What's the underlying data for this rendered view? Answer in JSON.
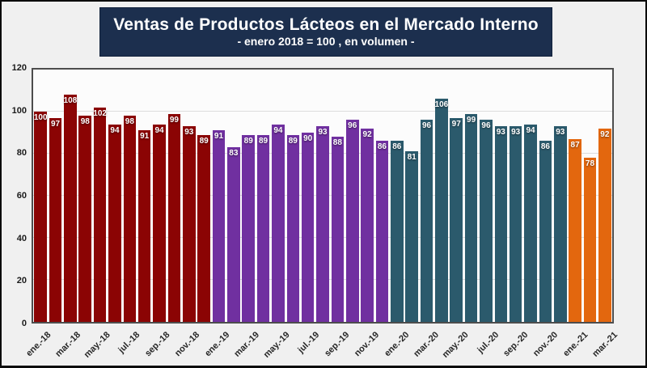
{
  "header": {
    "title": "Ventas de Productos Lácteos en el Mercado Interno",
    "subtitle": "- enero 2018 = 100 , en volumen -"
  },
  "chart_data": {
    "type": "bar",
    "title": "Ventas de Productos Lácteos en el Mercado Interno",
    "subtitle": "- enero 2018 = 100 , en volumen -",
    "ylim": [
      0,
      120
    ],
    "yticks": [
      0,
      20,
      40,
      60,
      80,
      100,
      120
    ],
    "grid": true,
    "legend": false,
    "value_labels": "inside-end",
    "xtick_labels": [
      "ene.-18",
      "mar.-18",
      "may.-18",
      "jul.-18",
      "sep.-18",
      "nov.-18",
      "ene.-19",
      "mar.-19",
      "may.-19",
      "jul.-19",
      "sep.-19",
      "nov.-19",
      "ene.-20",
      "mar.-20",
      "may.-20",
      "jul.-20",
      "sep.-20",
      "nov.-20",
      "ene.-21",
      "mar.-21"
    ],
    "xtick_every": 2,
    "series": [
      {
        "name": "2018",
        "color": "#8B0404",
        "values": [
          100,
          97,
          108,
          98,
          102,
          94,
          98,
          91,
          94,
          99,
          93,
          89
        ]
      },
      {
        "name": "2019",
        "color": "#7030A0",
        "values": [
          91,
          83,
          89,
          89,
          94,
          89,
          90,
          93,
          88,
          96,
          92,
          86
        ]
      },
      {
        "name": "2020",
        "color": "#2B5A6C",
        "values": [
          86,
          81,
          96,
          106,
          97,
          99,
          96,
          93,
          93,
          94,
          86,
          93
        ]
      },
      {
        "name": "2021",
        "color": "#E3670E",
        "values": [
          87,
          78,
          92
        ]
      }
    ]
  },
  "colors": {
    "title_background": "#1C2F4E",
    "title_text": "#ffffff",
    "page_background": "#F0F0F0",
    "plot_background": "#FCFCFC",
    "gridline": "#DCDCDC",
    "bar_2018": "#8B0404",
    "bar_2019": "#7030A0",
    "bar_2020": "#2B5A6C",
    "bar_2021": "#E3670E"
  }
}
